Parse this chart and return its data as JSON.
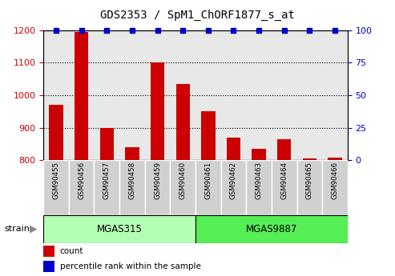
{
  "title": "GDS2353 / SpM1_ChORF1877_s_at",
  "samples": [
    "GSM90455",
    "GSM90456",
    "GSM90457",
    "GSM90458",
    "GSM90459",
    "GSM90460",
    "GSM90461",
    "GSM90462",
    "GSM90463",
    "GSM90464",
    "GSM90465",
    "GSM90466"
  ],
  "counts": [
    970,
    1195,
    900,
    840,
    1100,
    1035,
    950,
    870,
    835,
    865,
    805,
    808
  ],
  "percentiles": [
    100,
    100,
    100,
    100,
    100,
    100,
    100,
    100,
    100,
    100,
    100,
    100
  ],
  "ylim_left": [
    800,
    1200
  ],
  "ylim_right": [
    0,
    100
  ],
  "yticks_left": [
    800,
    900,
    1000,
    1100,
    1200
  ],
  "yticks_right": [
    0,
    25,
    50,
    75,
    100
  ],
  "bar_color": "#cc0000",
  "dot_color": "#0000cc",
  "group1_label": "MGAS315",
  "group1_indices": [
    0,
    1,
    2,
    3,
    4,
    5
  ],
  "group2_label": "MGAS9887",
  "group2_indices": [
    6,
    7,
    8,
    9,
    10,
    11
  ],
  "group1_color_light": "#b3ffb3",
  "group2_color_dark": "#55ee55",
  "strain_label": "strain",
  "legend_count_label": "count",
  "legend_percentile_label": "percentile rank within the sample",
  "tick_label_color_left": "#cc0000",
  "tick_label_color_right": "#0000cc",
  "bar_width": 0.55,
  "plot_bg_color": "#e8e8e8",
  "label_bg_color": "#d0d0d0"
}
